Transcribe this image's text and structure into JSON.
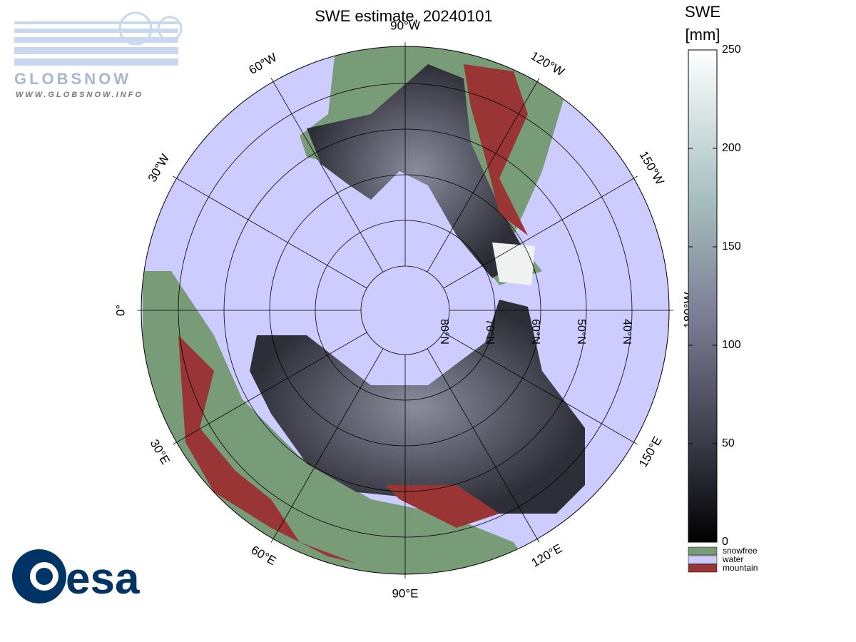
{
  "header": {
    "logo_text": "GLOBSNOW",
    "logo_url": "WWW.GLOBSNOW.INFO"
  },
  "map": {
    "title": "SWE estimate, 20240101",
    "meridian_labels": [
      "0°",
      "30°E",
      "60°E",
      "90°E",
      "120°E",
      "150°E",
      "180°W",
      "150°W",
      "120°W",
      "90°W",
      "60°W",
      "30°W"
    ],
    "latitude_labels": [
      "80°N",
      "70°N",
      "60°N",
      "50°N",
      "40°N"
    ]
  },
  "colorbar": {
    "label_line1": "SWE",
    "label_line2": "[mm]",
    "range": [
      0,
      250
    ],
    "ticks": [
      0,
      50,
      100,
      150,
      200,
      250
    ]
  },
  "legend": [
    {
      "name": "snowfree",
      "color": "#789c77"
    },
    {
      "name": "water",
      "color": "#ccccff"
    },
    {
      "name": "mountain",
      "color": "#9a3535"
    }
  ],
  "footer": {
    "logo": "esa"
  }
}
